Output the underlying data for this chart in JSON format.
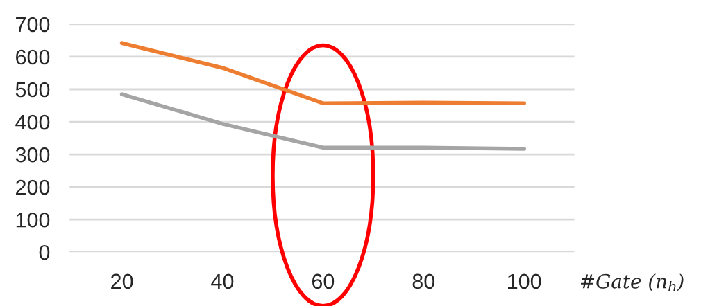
{
  "chart_data": {
    "type": "line",
    "xlabel": "#Gate (n$_{h}$)",
    "categories": [
      "20",
      "40",
      "60",
      "80",
      "100"
    ],
    "series": [
      {
        "color": "#ed7d31",
        "values": [
          642,
          566,
          457,
          459,
          457
        ]
      },
      {
        "color": "#a5a5a5",
        "values": [
          485,
          394,
          321,
          321,
          317
        ]
      }
    ],
    "ylim": [
      0,
      700
    ],
    "yticks": [
      0,
      100,
      200,
      300,
      400,
      500,
      600,
      700
    ],
    "grid": "y",
    "marker": "none",
    "line_style": "solid"
  }
}
